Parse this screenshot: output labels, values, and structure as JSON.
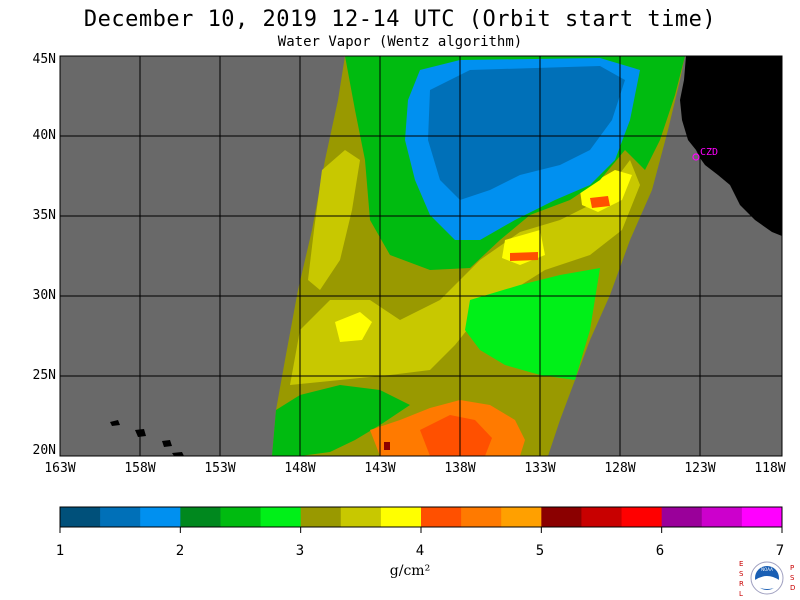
{
  "header": {
    "title": "December 10, 2019  12-14 UTC  (Orbit start time)",
    "subtitle": "Water Vapor (Wentz algorithm)"
  },
  "map": {
    "lat_labels": [
      "45N",
      "40N",
      "35N",
      "30N",
      "25N",
      "20N"
    ],
    "lon_labels": [
      "163W",
      "158W",
      "153W",
      "148W",
      "143W",
      "138W",
      "133W",
      "128W",
      "123W",
      "118W"
    ],
    "station_label": "CZD",
    "colors": {
      "no_data": "#696969",
      "land": "#000000",
      "grid": "#000000",
      "station": "#ff00ff"
    }
  },
  "colorbar": {
    "ticks": [
      "1",
      "2",
      "3",
      "4",
      "5",
      "6",
      "7"
    ],
    "unit": "g/cm²",
    "colors": [
      "#00507a",
      "#0070b8",
      "#0090f0",
      "#00881e",
      "#00bb10",
      "#00f018",
      "#999900",
      "#c8c800",
      "#ffff00",
      "#ff5000",
      "#ff7a00",
      "#ffa000",
      "#8b0000",
      "#c80000",
      "#ff0000",
      "#9a009a",
      "#cc00cc",
      "#ff00ff"
    ]
  },
  "logo": {
    "left_letters": [
      "E",
      "S",
      "R",
      "L"
    ],
    "right_letters": [
      "P",
      "S",
      "D"
    ],
    "center_text": "NOAA"
  }
}
